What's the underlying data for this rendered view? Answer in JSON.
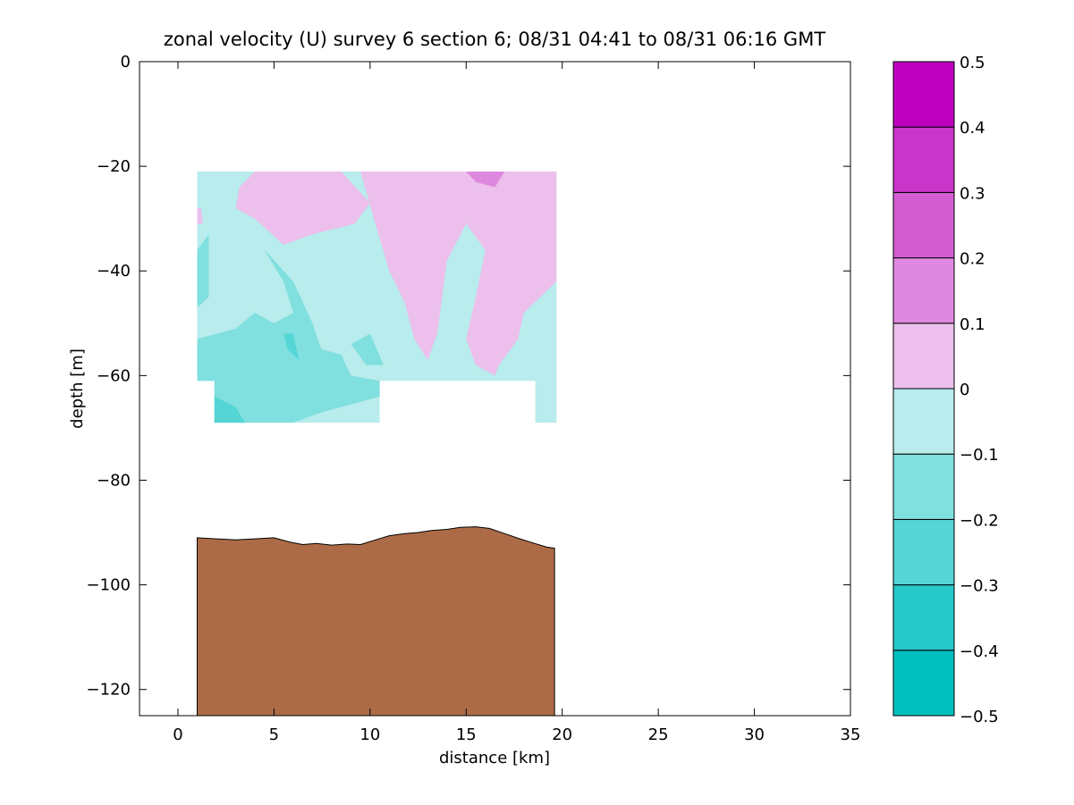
{
  "chart_data": {
    "type": "heatmap",
    "title": "zonal velocity (U) survey 6 section 6; 08/31 04:41 to 08/31 06:16 GMT",
    "xlabel": "distance [km]",
    "ylabel": "depth [m]",
    "xlim": [
      -2,
      35
    ],
    "ylim": [
      -125,
      0
    ],
    "xticks": [
      0,
      5,
      10,
      15,
      20,
      25,
      30,
      35
    ],
    "yticks": [
      0,
      -20,
      -40,
      -60,
      -80,
      -100,
      -120
    ],
    "grid": false,
    "colorbar": {
      "levels": [
        -0.5,
        -0.4,
        -0.3,
        -0.2,
        -0.1,
        0,
        0.1,
        0.2,
        0.3,
        0.4,
        0.5
      ],
      "tick_labels": [
        "0.5",
        "0.4",
        "0.3",
        "0.2",
        "0.1",
        "0",
        "−0.1",
        "−0.2",
        "−0.3",
        "−0.4",
        "−0.5"
      ],
      "colors": [
        "#00bfbf",
        "#26c8c8",
        "#55d5d5",
        "#80dfdf",
        "#b9ecec",
        "#ecbfec",
        "#df88df",
        "#d25ed2",
        "#c935c9",
        "#bf00bf"
      ]
    },
    "velocity_regions": [
      {
        "level": "-0.1..0",
        "polygon": [
          [
            1.0,
            -21
          ],
          [
            19.7,
            -21
          ],
          [
            19.7,
            -69
          ],
          [
            18.6,
            -69
          ],
          [
            18.6,
            -61
          ],
          [
            10.5,
            -61
          ],
          [
            10.5,
            -69
          ],
          [
            1.9,
            -69
          ],
          [
            1.9,
            -61
          ],
          [
            1.0,
            -61
          ]
        ]
      },
      {
        "level": "0..0.1",
        "polygon": [
          [
            4.0,
            -21
          ],
          [
            8.5,
            -21
          ],
          [
            10.0,
            -27
          ],
          [
            9.2,
            -31
          ],
          [
            7.0,
            -33
          ],
          [
            5.5,
            -35
          ],
          [
            4.0,
            -30
          ],
          [
            3.0,
            -28
          ],
          [
            3.2,
            -24
          ]
        ]
      },
      {
        "level": "0..0.1",
        "polygon": [
          [
            9.5,
            -21
          ],
          [
            19.7,
            -21
          ],
          [
            19.7,
            -42
          ],
          [
            18.0,
            -48
          ],
          [
            17.7,
            -53
          ],
          [
            16.7,
            -58
          ],
          [
            16.5,
            -60
          ],
          [
            15.5,
            -58
          ],
          [
            15.0,
            -53
          ],
          [
            15.5,
            -45
          ],
          [
            16.0,
            -36
          ],
          [
            15.0,
            -31
          ],
          [
            14.0,
            -38
          ],
          [
            13.5,
            -52
          ],
          [
            13.0,
            -57
          ],
          [
            12.3,
            -53
          ],
          [
            11.8,
            -46
          ],
          [
            11.0,
            -40
          ],
          [
            10.2,
            -30
          ]
        ]
      },
      {
        "level": "0..0.1",
        "polygon": [
          [
            1.0,
            -28
          ],
          [
            1.2,
            -28
          ],
          [
            1.3,
            -31
          ],
          [
            1.0,
            -31
          ]
        ]
      },
      {
        "level": "0.1..0.2",
        "polygon": [
          [
            15.0,
            -21
          ],
          [
            17.0,
            -21
          ],
          [
            16.5,
            -24
          ],
          [
            15.5,
            -23
          ]
        ]
      },
      {
        "level": "-0.2..-0.1",
        "polygon": [
          [
            1.0,
            -36
          ],
          [
            1.6,
            -33
          ],
          [
            1.6,
            -45
          ],
          [
            1.0,
            -47
          ]
        ]
      },
      {
        "level": "-0.2..-0.1",
        "polygon": [
          [
            4.5,
            -36
          ],
          [
            5.5,
            -42
          ],
          [
            6.0,
            -48
          ],
          [
            7.0,
            -53
          ],
          [
            6.5,
            -60
          ],
          [
            7.5,
            -67
          ],
          [
            8.0,
            -61
          ],
          [
            7.0,
            -50
          ],
          [
            6.0,
            -42
          ]
        ]
      },
      {
        "level": "-0.2..-0.1",
        "polygon": [
          [
            1.0,
            -53
          ],
          [
            3.0,
            -51
          ],
          [
            4.0,
            -48
          ],
          [
            5.0,
            -50
          ],
          [
            6.0,
            -48
          ],
          [
            7.0,
            -52
          ],
          [
            7.5,
            -55
          ],
          [
            8.5,
            -56
          ],
          [
            9.0,
            -60
          ],
          [
            10.5,
            -61
          ],
          [
            10.5,
            -64
          ],
          [
            7.5,
            -67
          ],
          [
            6.0,
            -69
          ],
          [
            1.9,
            -69
          ],
          [
            1.9,
            -61
          ],
          [
            1.0,
            -61
          ]
        ]
      },
      {
        "level": "-0.2..-0.1",
        "polygon": [
          [
            9.0,
            -54
          ],
          [
            10.0,
            -52
          ],
          [
            10.7,
            -58
          ],
          [
            9.8,
            -58
          ]
        ]
      },
      {
        "level": "-0.3..-0.2",
        "polygon": [
          [
            1.9,
            -64
          ],
          [
            3.0,
            -66
          ],
          [
            3.5,
            -69
          ],
          [
            1.9,
            -69
          ]
        ]
      },
      {
        "level": "-0.3..-0.2",
        "polygon": [
          [
            5.5,
            -52
          ],
          [
            6.0,
            -52
          ],
          [
            6.3,
            -57
          ],
          [
            5.7,
            -55
          ]
        ]
      }
    ],
    "bathymetry": {
      "fill": "#ac6b46",
      "x": [
        1.0,
        2.0,
        3.0,
        4.0,
        5.0,
        5.8,
        6.5,
        7.2,
        8.0,
        8.8,
        9.5,
        10.2,
        11.0,
        11.8,
        12.5,
        13.2,
        14.0,
        14.7,
        15.5,
        16.2,
        17.0,
        17.8,
        18.5,
        19.2,
        19.6
      ],
      "y": [
        -91.0,
        -91.2,
        -91.4,
        -91.2,
        -91.0,
        -91.8,
        -92.3,
        -92.1,
        -92.4,
        -92.2,
        -92.3,
        -91.5,
        -90.6,
        -90.2,
        -90.0,
        -89.6,
        -89.4,
        -89.0,
        -88.9,
        -89.2,
        -90.2,
        -91.2,
        -92.0,
        -92.8,
        -93.0
      ]
    }
  }
}
